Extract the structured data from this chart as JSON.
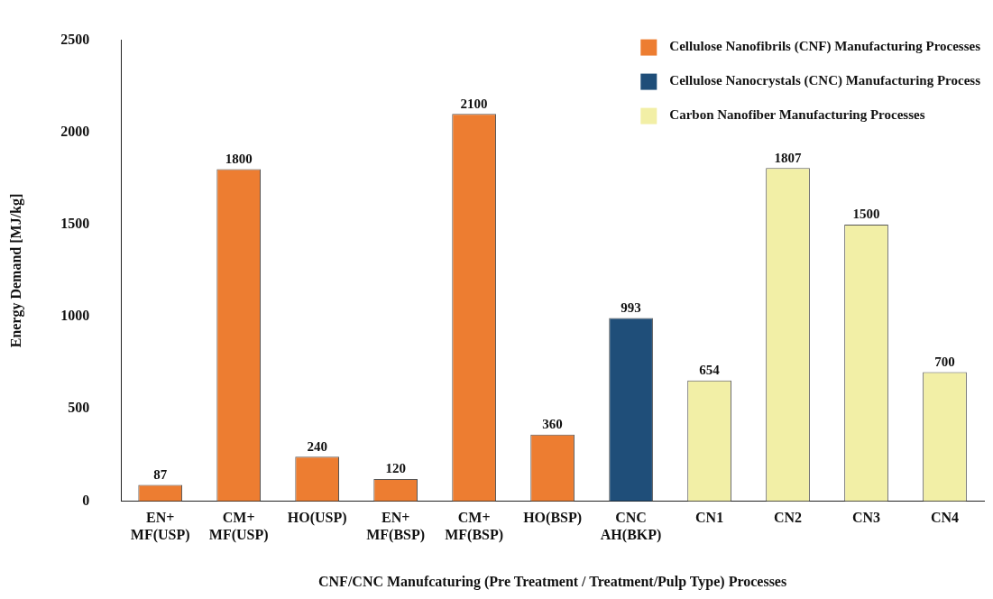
{
  "chart_data": {
    "type": "bar",
    "xlabel": "CNF/CNC Manufcaturing (Pre Treatment / Treatment/Pulp Type) Processes",
    "ylabel": "Energy Demand [MJ/kg]",
    "categories": [
      "EN+ MF(USP)",
      "CM+ MF(USP)",
      "HO(USP)",
      "EN+ MF(BSP)",
      "CM+ MF(BSP)",
      "HO(BSP)",
      "CNC AH(BKP)",
      "CN1",
      "CN2",
      "CN3",
      "CN4"
    ],
    "series": [
      {
        "name": "Cellulose Nanofibrils (CNF) Manufacturing Processes",
        "color": "#ed7d31",
        "values": [
          87,
          1800,
          240,
          120,
          2100,
          360,
          null,
          null,
          null,
          null,
          null
        ]
      },
      {
        "name": "Cellulose Nanocrystals (CNC) Manufacturing Process",
        "color": "#1f4e79",
        "values": [
          null,
          null,
          null,
          null,
          null,
          null,
          993,
          null,
          null,
          null,
          null
        ]
      },
      {
        "name": "Carbon Nanofiber Manufacturing Processes",
        "color": "#f2efa6",
        "values": [
          null,
          null,
          null,
          null,
          null,
          null,
          null,
          654,
          1807,
          1500,
          700
        ]
      }
    ],
    "stacked": true,
    "ylim": [
      0,
      2500
    ],
    "yticks": [
      0,
      500,
      1000,
      1500,
      2000,
      2500
    ],
    "grid": false,
    "legend": "top right",
    "data_labels": true
  }
}
